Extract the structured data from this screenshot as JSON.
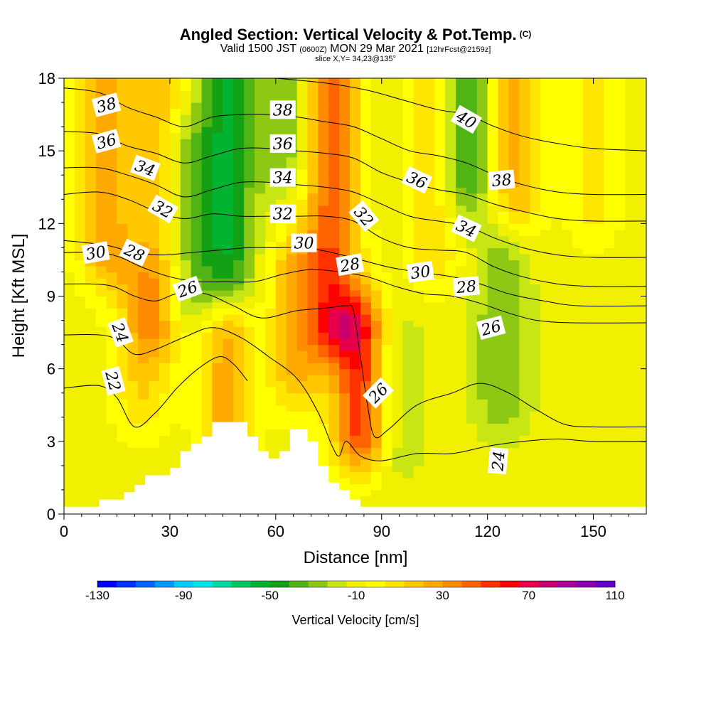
{
  "title": {
    "main": "Angled Section: Vertical Velocity & Pot.Temp.",
    "main_tag": "(C)",
    "valid_prefix": "Valid 1500 JST",
    "valid_utc": "(0600Z)",
    "valid_date": "MON 29 Mar 2021",
    "valid_fcst": "[12hrFcst@2159z]",
    "slice": "slice X,Y= 34,23@135°"
  },
  "chart_data": {
    "type": "heatmap",
    "xlabel": "Distance [nm]",
    "ylabel": "Height [Kft MSL]",
    "xlim": [
      0,
      165
    ],
    "ylim": [
      0,
      18
    ],
    "x_ticks": [
      0,
      30,
      60,
      90,
      120,
      150
    ],
    "y_ticks": [
      0,
      3,
      6,
      9,
      12,
      15,
      18
    ],
    "colorbar": {
      "label": "Vertical Velocity [cm/s]",
      "min": -130,
      "max": 110,
      "step": 10,
      "tick_labels": [
        "-130",
        "-90",
        "-50",
        "-10",
        "30",
        "70",
        "110"
      ],
      "colors": [
        "#0000ff",
        "#0033ff",
        "#0066ff",
        "#0099ff",
        "#00ccff",
        "#00e5e5",
        "#00d9a0",
        "#00c864",
        "#00b432",
        "#14a014",
        "#50b414",
        "#8cc814",
        "#c8e614",
        "#f0f000",
        "#ffff00",
        "#ffe600",
        "#ffc800",
        "#ffaa00",
        "#ff8c00",
        "#ff6400",
        "#ff3200",
        "#ff0000",
        "#e6004b",
        "#c8006e",
        "#aa0096",
        "#8c00b4",
        "#6400c8"
      ]
    },
    "background_value": 5,
    "updraft_bands": [
      {
        "x": 76,
        "ztop": 18,
        "zbot": 8,
        "value": 60
      },
      {
        "x": 84,
        "ztop": 7.5,
        "zbot": 3.5,
        "value": 70
      },
      {
        "x": 27,
        "ztop": 18,
        "zbot": 8,
        "value": 35
      },
      {
        "x": 12,
        "ztop": 18,
        "zbot": 11,
        "value": 40
      },
      {
        "x": 127,
        "ztop": 18,
        "zbot": 13,
        "value": 40
      },
      {
        "x": 46,
        "ztop": 7.5,
        "zbot": 4,
        "value": 40
      },
      {
        "x": 66,
        "ztop": 10,
        "zbot": 6,
        "value": 35
      },
      {
        "x": 22,
        "ztop": 9,
        "zbot": 5,
        "value": 25
      },
      {
        "x": 105,
        "ztop": 18,
        "zbot": 11,
        "value": 25
      },
      {
        "x": 150,
        "ztop": 18,
        "zbot": 13,
        "value": 20
      }
    ],
    "downdraft_bands": [
      {
        "x": 46,
        "ztop": 18,
        "zbot": 10,
        "value": -45
      },
      {
        "x": 34,
        "ztop": 15,
        "zbot": 9,
        "value": -25
      },
      {
        "x": 114,
        "ztop": 18,
        "zbot": 14,
        "value": -40
      },
      {
        "x": 124,
        "ztop": 11,
        "zbot": 5,
        "value": -25
      },
      {
        "x": 62,
        "ztop": 18,
        "zbot": 15,
        "value": -25
      },
      {
        "x": 94,
        "ztop": 7,
        "zbot": 3,
        "value": -15
      }
    ],
    "theta_contours": [
      {
        "level": 22,
        "label": "22",
        "points": [
          [
            0,
            5.2
          ],
          [
            10,
            5.3
          ],
          [
            15,
            4.8
          ],
          [
            20,
            3.6
          ],
          [
            26,
            4.2
          ],
          [
            32,
            5.2
          ],
          [
            38,
            6.0
          ],
          [
            44,
            6.5
          ],
          [
            48,
            6.2
          ],
          [
            52,
            5.5
          ]
        ]
      },
      {
        "level": 24,
        "label": "24",
        "points": [
          [
            0,
            7.4
          ],
          [
            10,
            7.4
          ],
          [
            15,
            7.2
          ],
          [
            20,
            6.6
          ],
          [
            26,
            6.8
          ],
          [
            34,
            7.3
          ],
          [
            42,
            7.7
          ],
          [
            50,
            7.3
          ],
          [
            58,
            6.5
          ],
          [
            66,
            5.6
          ],
          [
            72,
            4.2
          ],
          [
            76,
            2.8
          ],
          [
            78,
            2.4
          ],
          [
            80,
            3.0
          ],
          [
            84,
            2.4
          ],
          [
            90,
            2.2
          ],
          [
            100,
            2.5
          ],
          [
            110,
            2.5
          ],
          [
            120,
            2.8
          ],
          [
            130,
            3.0
          ],
          [
            140,
            3.1
          ],
          [
            150,
            3.0
          ],
          [
            165,
            3.0
          ]
        ]
      },
      {
        "level": 26,
        "label": "26",
        "points": [
          [
            0,
            9.5
          ],
          [
            8,
            9.5
          ],
          [
            14,
            9.4
          ],
          [
            20,
            9.0
          ],
          [
            26,
            8.8
          ],
          [
            32,
            9.1
          ],
          [
            40,
            9.1
          ],
          [
            48,
            8.6
          ],
          [
            56,
            8.1
          ],
          [
            66,
            8.4
          ],
          [
            74,
            8.5
          ],
          [
            80,
            8.6
          ],
          [
            82,
            8.4
          ],
          [
            84,
            6.5
          ],
          [
            86,
            4.5
          ],
          [
            88,
            3.2
          ],
          [
            92,
            3.5
          ],
          [
            100,
            4.5
          ],
          [
            110,
            5.0
          ],
          [
            118,
            5.4
          ],
          [
            126,
            5.0
          ],
          [
            134,
            4.3
          ],
          [
            142,
            3.7
          ],
          [
            150,
            3.6
          ],
          [
            165,
            3.6
          ]
        ]
      },
      {
        "level": 28,
        "label": "28",
        "points": [
          [
            0,
            10.8
          ],
          [
            10,
            10.8
          ],
          [
            16,
            10.6
          ],
          [
            22,
            10.2
          ],
          [
            30,
            9.8
          ],
          [
            38,
            9.6
          ],
          [
            46,
            9.6
          ],
          [
            54,
            9.6
          ],
          [
            62,
            9.9
          ],
          [
            70,
            10.1
          ],
          [
            78,
            10.0
          ],
          [
            86,
            9.8
          ],
          [
            94,
            9.4
          ],
          [
            102,
            9.1
          ],
          [
            110,
            9.0
          ],
          [
            118,
            8.7
          ],
          [
            126,
            8.3
          ],
          [
            134,
            8.0
          ],
          [
            144,
            7.9
          ],
          [
            165,
            7.9
          ]
        ]
      },
      {
        "level": 30,
        "label": "30",
        "points": [
          [
            0,
            11.3
          ],
          [
            12,
            11.1
          ],
          [
            20,
            10.8
          ],
          [
            28,
            10.7
          ],
          [
            36,
            10.8
          ],
          [
            44,
            10.9
          ],
          [
            52,
            11.0
          ],
          [
            60,
            11.0
          ],
          [
            68,
            11.0
          ],
          [
            76,
            10.8
          ],
          [
            84,
            10.5
          ],
          [
            92,
            10.2
          ],
          [
            100,
            10.0
          ],
          [
            110,
            9.8
          ],
          [
            118,
            9.5
          ],
          [
            126,
            9.1
          ],
          [
            136,
            8.8
          ],
          [
            146,
            8.6
          ],
          [
            165,
            8.6
          ]
        ]
      },
      {
        "level": 32,
        "label": "32",
        "points": [
          [
            0,
            13.2
          ],
          [
            10,
            13.3
          ],
          [
            18,
            13.0
          ],
          [
            26,
            12.5
          ],
          [
            34,
            12.2
          ],
          [
            42,
            12.4
          ],
          [
            50,
            12.3
          ],
          [
            58,
            12.3
          ],
          [
            66,
            12.3
          ],
          [
            74,
            12.3
          ],
          [
            82,
            12.1
          ],
          [
            90,
            11.4
          ],
          [
            98,
            11.0
          ],
          [
            106,
            10.9
          ],
          [
            114,
            10.8
          ],
          [
            122,
            10.2
          ],
          [
            130,
            9.8
          ],
          [
            140,
            9.5
          ],
          [
            150,
            9.4
          ],
          [
            165,
            9.4
          ]
        ]
      },
      {
        "level": 34,
        "label": "34",
        "points": [
          [
            0,
            14.3
          ],
          [
            10,
            14.3
          ],
          [
            18,
            14.0
          ],
          [
            26,
            13.6
          ],
          [
            34,
            13.1
          ],
          [
            42,
            13.4
          ],
          [
            50,
            13.7
          ],
          [
            58,
            13.7
          ],
          [
            66,
            13.6
          ],
          [
            74,
            13.5
          ],
          [
            82,
            13.3
          ],
          [
            90,
            12.8
          ],
          [
            98,
            12.3
          ],
          [
            106,
            12.1
          ],
          [
            114,
            11.9
          ],
          [
            122,
            11.4
          ],
          [
            130,
            11.0
          ],
          [
            140,
            10.7
          ],
          [
            150,
            10.6
          ],
          [
            165,
            10.6
          ]
        ]
      },
      {
        "level": 36,
        "label": "36",
        "points": [
          [
            0,
            15.8
          ],
          [
            10,
            15.7
          ],
          [
            18,
            15.2
          ],
          [
            26,
            14.9
          ],
          [
            34,
            14.5
          ],
          [
            42,
            14.8
          ],
          [
            50,
            15.1
          ],
          [
            58,
            15.1
          ],
          [
            66,
            15.0
          ],
          [
            74,
            14.9
          ],
          [
            82,
            14.7
          ],
          [
            90,
            14.1
          ],
          [
            98,
            13.7
          ],
          [
            106,
            13.4
          ],
          [
            114,
            13.2
          ],
          [
            122,
            12.8
          ],
          [
            130,
            12.5
          ],
          [
            140,
            12.2
          ],
          [
            150,
            12.1
          ],
          [
            165,
            12.1
          ]
        ]
      },
      {
        "level": 38,
        "label": "38",
        "points": [
          [
            0,
            17.6
          ],
          [
            10,
            17.4
          ],
          [
            18,
            16.8
          ],
          [
            26,
            16.4
          ],
          [
            34,
            16.0
          ],
          [
            42,
            16.4
          ],
          [
            50,
            16.5
          ],
          [
            58,
            16.5
          ],
          [
            66,
            16.4
          ],
          [
            74,
            16.2
          ],
          [
            82,
            16.0
          ],
          [
            90,
            15.5
          ],
          [
            98,
            15.0
          ],
          [
            106,
            14.8
          ],
          [
            114,
            14.5
          ],
          [
            122,
            14.0
          ],
          [
            130,
            13.6
          ],
          [
            140,
            13.3
          ],
          [
            150,
            13.2
          ],
          [
            165,
            13.2
          ]
        ]
      },
      {
        "level": 40,
        "label": "40",
        "points": [
          [
            60,
            18.0
          ],
          [
            74,
            17.8
          ],
          [
            86,
            17.5
          ],
          [
            96,
            17.1
          ],
          [
            106,
            16.7
          ],
          [
            114,
            16.5
          ],
          [
            122,
            16.0
          ],
          [
            130,
            15.6
          ],
          [
            140,
            15.3
          ],
          [
            150,
            15.1
          ],
          [
            165,
            15.0
          ]
        ]
      }
    ],
    "contour_labels": [
      {
        "label": "38",
        "x": 12,
        "z": 16.9,
        "angle": -15
      },
      {
        "label": "36",
        "x": 12,
        "z": 15.4,
        "angle": -15
      },
      {
        "label": "34",
        "x": 23,
        "z": 14.3,
        "angle": 20
      },
      {
        "label": "32",
        "x": 28,
        "z": 12.6,
        "angle": 30
      },
      {
        "label": "30",
        "x": 9,
        "z": 10.8,
        "angle": -10
      },
      {
        "label": "28",
        "x": 20,
        "z": 10.8,
        "angle": 25
      },
      {
        "label": "26",
        "x": 35,
        "z": 9.3,
        "angle": -20
      },
      {
        "label": "24",
        "x": 16,
        "z": 7.5,
        "angle": 70
      },
      {
        "label": "22",
        "x": 14,
        "z": 5.5,
        "angle": 75
      },
      {
        "label": "38",
        "x": 62,
        "z": 16.7,
        "angle": 0
      },
      {
        "label": "36",
        "x": 62,
        "z": 15.3,
        "angle": 0
      },
      {
        "label": "34",
        "x": 62,
        "z": 13.9,
        "angle": 0
      },
      {
        "label": "32",
        "x": 62,
        "z": 12.4,
        "angle": 0
      },
      {
        "label": "30",
        "x": 68,
        "z": 11.2,
        "angle": 0
      },
      {
        "label": "28",
        "x": 81,
        "z": 10.3,
        "angle": -10
      },
      {
        "label": "32",
        "x": 85,
        "z": 12.3,
        "angle": 50
      },
      {
        "label": "26",
        "x": 89,
        "z": 5.0,
        "angle": -45
      },
      {
        "label": "36",
        "x": 100,
        "z": 13.8,
        "angle": 25
      },
      {
        "label": "30",
        "x": 101,
        "z": 10.0,
        "angle": -8
      },
      {
        "label": "28",
        "x": 114,
        "z": 9.4,
        "angle": -5
      },
      {
        "label": "40",
        "x": 114,
        "z": 16.3,
        "angle": 30
      },
      {
        "label": "34",
        "x": 114,
        "z": 11.8,
        "angle": 25
      },
      {
        "label": "38",
        "x": 124,
        "z": 13.8,
        "angle": -5
      },
      {
        "label": "26",
        "x": 121,
        "z": 7.7,
        "angle": -15
      },
      {
        "label": "24",
        "x": 123,
        "z": 2.2,
        "angle": -85
      }
    ],
    "terrain": [
      [
        0,
        0.3
      ],
      [
        10,
        0.3
      ],
      [
        10,
        0.6
      ],
      [
        17,
        0.6
      ],
      [
        17,
        0.9
      ],
      [
        20,
        0.9
      ],
      [
        20,
        1.2
      ],
      [
        23,
        1.2
      ],
      [
        23,
        1.6
      ],
      [
        30,
        1.6
      ],
      [
        30,
        1.9
      ],
      [
        33,
        1.9
      ],
      [
        33,
        2.6
      ],
      [
        36,
        2.6
      ],
      [
        36,
        2.9
      ],
      [
        39,
        2.9
      ],
      [
        39,
        3.2
      ],
      [
        42,
        3.2
      ],
      [
        42,
        3.8
      ],
      [
        52,
        3.8
      ],
      [
        52,
        3.2
      ],
      [
        55,
        3.2
      ],
      [
        55,
        2.6
      ],
      [
        58,
        2.6
      ],
      [
        58,
        2.3
      ],
      [
        61,
        2.3
      ],
      [
        61,
        2.6
      ],
      [
        64,
        2.6
      ],
      [
        64,
        3.5
      ],
      [
        69,
        3.5
      ],
      [
        69,
        3.0
      ],
      [
        72,
        3.0
      ],
      [
        72,
        2.0
      ],
      [
        75,
        2.0
      ],
      [
        75,
        1.3
      ],
      [
        78,
        1.3
      ],
      [
        78,
        1.0
      ],
      [
        81,
        1.0
      ],
      [
        81,
        0.6
      ],
      [
        84,
        0.6
      ],
      [
        84,
        0.3
      ],
      [
        92,
        0.3
      ],
      [
        165,
        0.3
      ]
    ]
  }
}
